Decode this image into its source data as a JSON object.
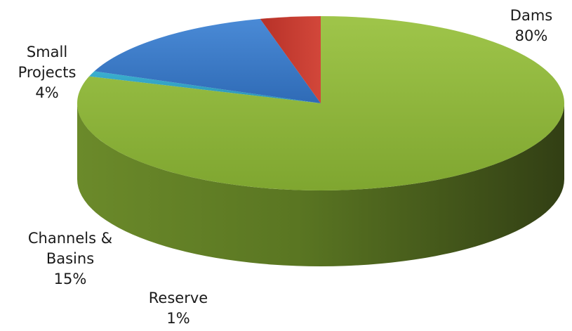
{
  "chart_data": {
    "type": "pie",
    "title": "",
    "style": "3d",
    "slices": [
      {
        "name": "Dams",
        "value": 80,
        "label_lines": [
          "Dams",
          "80%"
        ],
        "color": "#8db33a"
      },
      {
        "name": "Small Projects",
        "value": 4,
        "label_lines": [
          "Small",
          "Projects",
          "4%"
        ],
        "color": "#c0392b"
      },
      {
        "name": "Channels & Basins",
        "value": 15,
        "label_lines": [
          "Channels &",
          "Basins",
          "15%"
        ],
        "color": "#3a78c6"
      },
      {
        "name": "Reserve",
        "value": 1,
        "label_lines": [
          "Reserve",
          "1%"
        ],
        "color": "#2a9ab8"
      }
    ]
  }
}
